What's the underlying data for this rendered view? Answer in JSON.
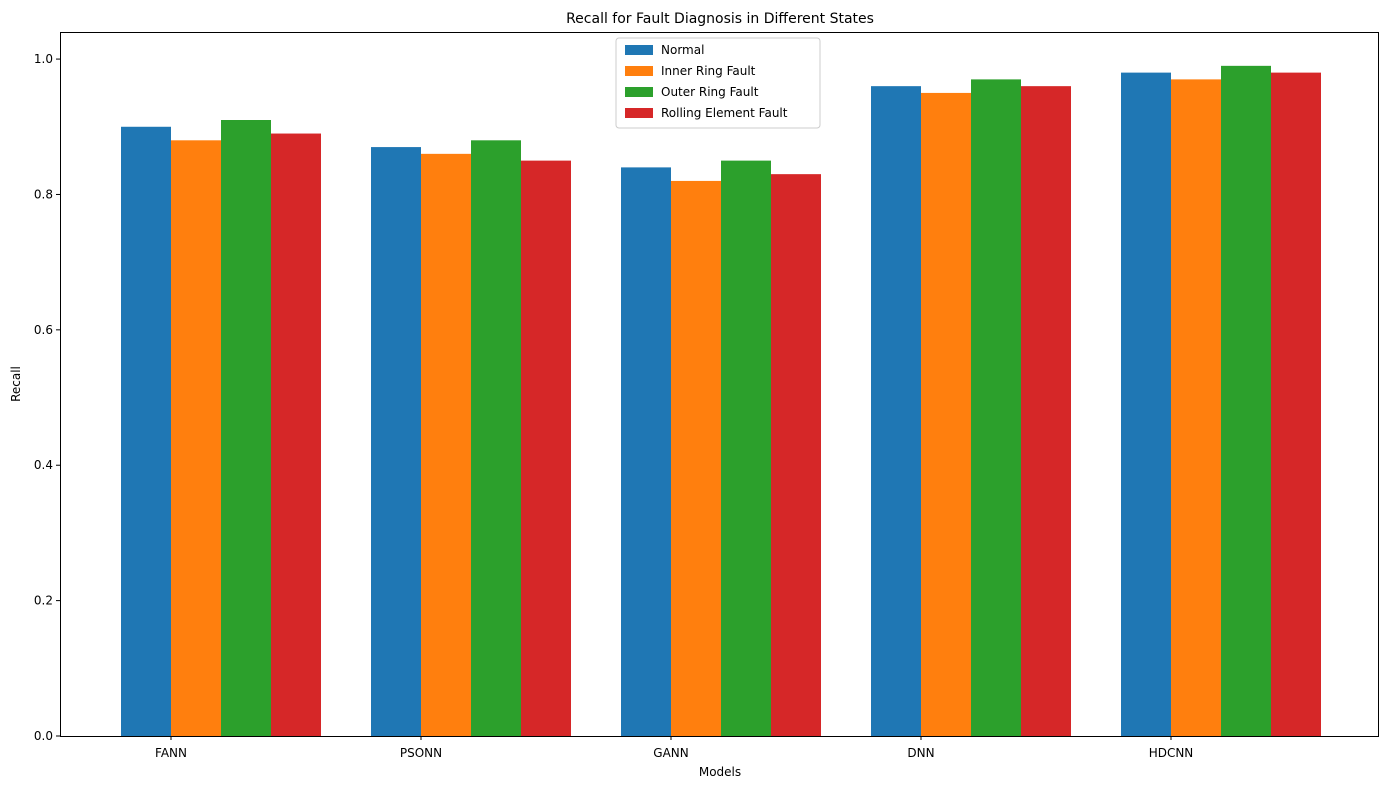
{
  "chart_data": {
    "type": "bar",
    "title": "Recall for Fault Diagnosis in Different States",
    "xlabel": "Models",
    "ylabel": "Recall",
    "categories": [
      "FANN",
      "PSONN",
      "GANN",
      "DNN",
      "HDCNN"
    ],
    "series": [
      {
        "name": "Normal",
        "color": "#1f77b4",
        "values": [
          0.9,
          0.87,
          0.84,
          0.96,
          0.98
        ]
      },
      {
        "name": "Inner Ring Fault",
        "color": "#ff7f0e",
        "values": [
          0.88,
          0.86,
          0.82,
          0.95,
          0.97
        ]
      },
      {
        "name": "Outer Ring Fault",
        "color": "#2ca02c",
        "values": [
          0.91,
          0.88,
          0.85,
          0.97,
          0.99
        ]
      },
      {
        "name": "Rolling Element Fault",
        "color": "#d62728",
        "values": [
          0.89,
          0.85,
          0.83,
          0.96,
          0.98
        ]
      }
    ],
    "ylim": [
      0,
      1.04
    ],
    "yticks": [
      "0.0",
      "0.2",
      "0.4",
      "0.6",
      "0.8",
      "1.0"
    ],
    "legend": "upper-center",
    "grid": false
  }
}
